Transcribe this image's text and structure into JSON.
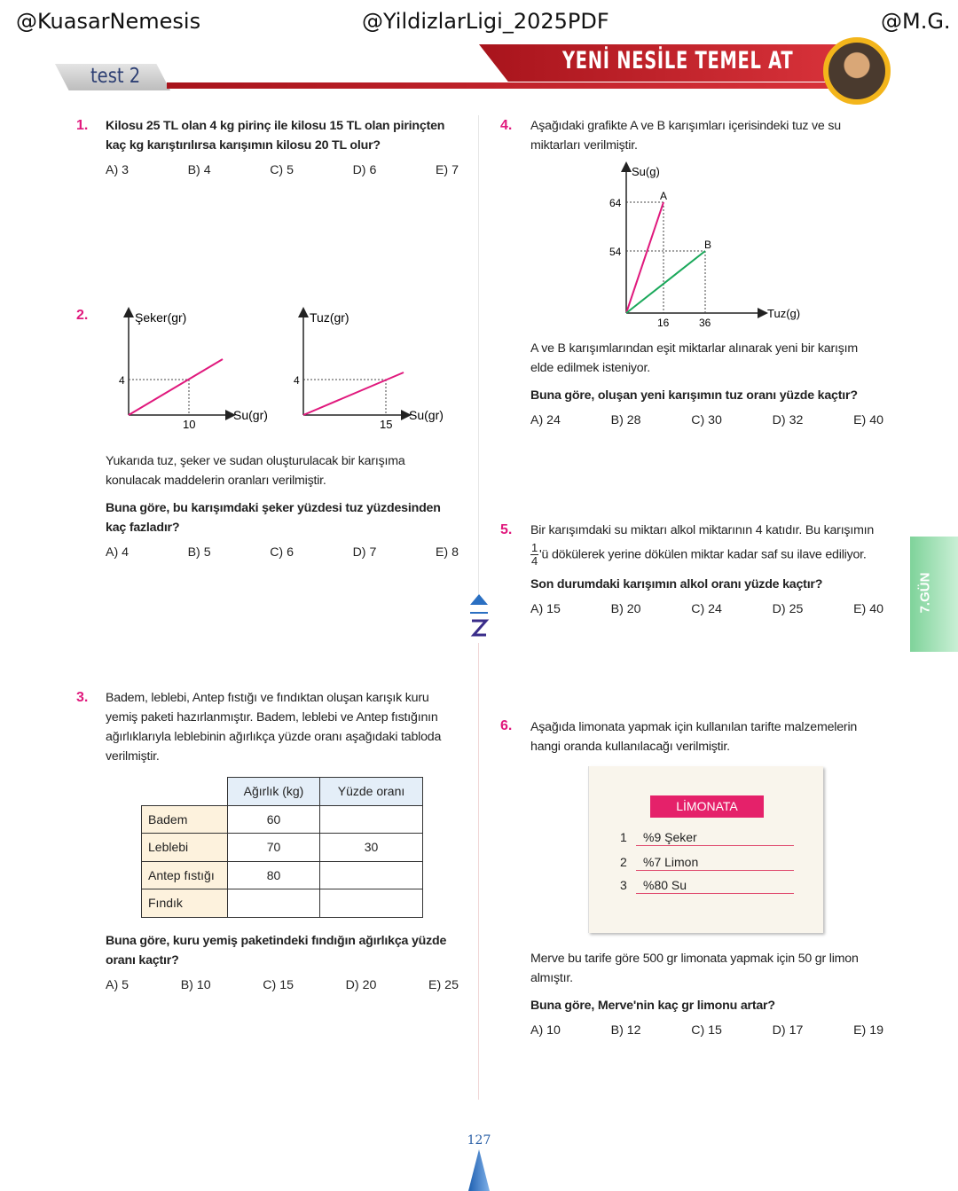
{
  "watermarks": [
    "@KuasarNemesis",
    "@YildizlarLigi_2025PDF",
    "@M.G."
  ],
  "header": {
    "test_label": "test 2",
    "banner_title": "YENİ NESİLE TEMEL AT"
  },
  "side_tab": "7.GÜN",
  "page_number": "127",
  "colors": {
    "accent": "#e0197d",
    "banner_red": "#c8202a",
    "green_tab": "#7fd39a"
  },
  "q1": {
    "number": "1.",
    "text": "Kilosu 25 TL olan 4 kg pirinç ile kilosu 15 TL olan pirinçten kaç kg karıştırılırsa karışımın kilosu 20 TL olur?",
    "options": [
      "A) 3",
      "B) 4",
      "C) 5",
      "D) 6",
      "E) 7"
    ]
  },
  "q2": {
    "number": "2.",
    "graph1": {
      "ylabel": "Şeker(gr)",
      "xlabel": "Su(gr)",
      "y_tick": "4",
      "x_tick": "10"
    },
    "graph2": {
      "ylabel": "Tuz(gr)",
      "xlabel": "Su(gr)",
      "y_tick": "4",
      "x_tick": "15"
    },
    "text": "Yukarıda tuz, şeker ve sudan oluşturulacak bir karışıma konulacak maddelerin oranları verilmiştir.",
    "question": "Buna göre, bu karışımdaki şeker yüzdesi tuz yüzdesinden kaç fazladır?",
    "options": [
      "A) 4",
      "B) 5",
      "C) 6",
      "D) 7",
      "E) 8"
    ]
  },
  "q3": {
    "number": "3.",
    "text": "Badem, leblebi, Antep fıstığı ve fındıktan oluşan karışık kuru yemiş paketi hazırlanmıştır. Badem, leblebi ve Antep fıstığının ağırlıklarıyla leblebinin ağırlıkça yüzde oranı aşağıdaki tabloda verilmiştir.",
    "table": {
      "headers": [
        "Ağırlık (kg)",
        "Yüzde oranı"
      ],
      "rows": [
        [
          "Badem",
          "60",
          ""
        ],
        [
          "Leblebi",
          "70",
          "30"
        ],
        [
          "Antep fıstığı",
          "80",
          ""
        ],
        [
          "Fındık",
          "",
          ""
        ]
      ]
    },
    "question": "Buna göre, kuru yemiş paketindeki fındığın ağırlıkça yüzde oranı kaçtır?",
    "options": [
      "A) 5",
      "B) 10",
      "C) 15",
      "D) 20",
      "E) 25"
    ]
  },
  "q4": {
    "number": "4.",
    "text": "Aşağıdaki grafikte A ve B karışımları içerisindeki tuz ve su miktarları verilmiştir.",
    "graph": {
      "ylabel": "Su(g)",
      "xlabel": "Tuz(g)",
      "y_ticks": [
        "64",
        "54"
      ],
      "x_ticks": [
        "16",
        "36"
      ],
      "point_a": "A",
      "point_b": "B"
    },
    "text2": "A ve B karışımlarından eşit miktarlar alınarak yeni bir karışım elde edilmek isteniyor.",
    "question": "Buna göre, oluşan yeni karışımın tuz oranı yüzde kaçtır?",
    "options": [
      "A) 24",
      "B) 28",
      "C) 30",
      "D) 32",
      "E) 40"
    ]
  },
  "q5": {
    "number": "5.",
    "text": "Bir karışımdaki su miktarı alkol miktarının 4 katıdır. Bu karışımın",
    "frac_num": "1",
    "frac_den": "4",
    "text2": "'ü dökülerek yerine dökülen miktar kadar saf su ilave ediliyor.",
    "question": "Son durumdaki karışımın alkol oranı yüzde kaçtır?",
    "options": [
      "A) 15",
      "B) 20",
      "C) 24",
      "D) 25",
      "E) 40"
    ]
  },
  "q6": {
    "number": "6.",
    "text": "Aşağıda limonata yapmak için kullanılan tarifte malzemelerin hangi oranda kullanılacağı verilmiştir.",
    "card": {
      "title": "LİMONATA",
      "items": [
        {
          "n": "1",
          "v": "%9 Şeker"
        },
        {
          "n": "2",
          "v": "%7 Limon"
        },
        {
          "n": "3",
          "v": "%80 Su"
        }
      ]
    },
    "text2": "Merve bu tarife göre 500 gr limonata yapmak için 50 gr limon almıştır.",
    "question": "Buna göre, Merve'nin kaç gr limonu artar?",
    "options": [
      "A) 10",
      "B) 12",
      "C) 15",
      "D) 17",
      "E) 19"
    ]
  }
}
